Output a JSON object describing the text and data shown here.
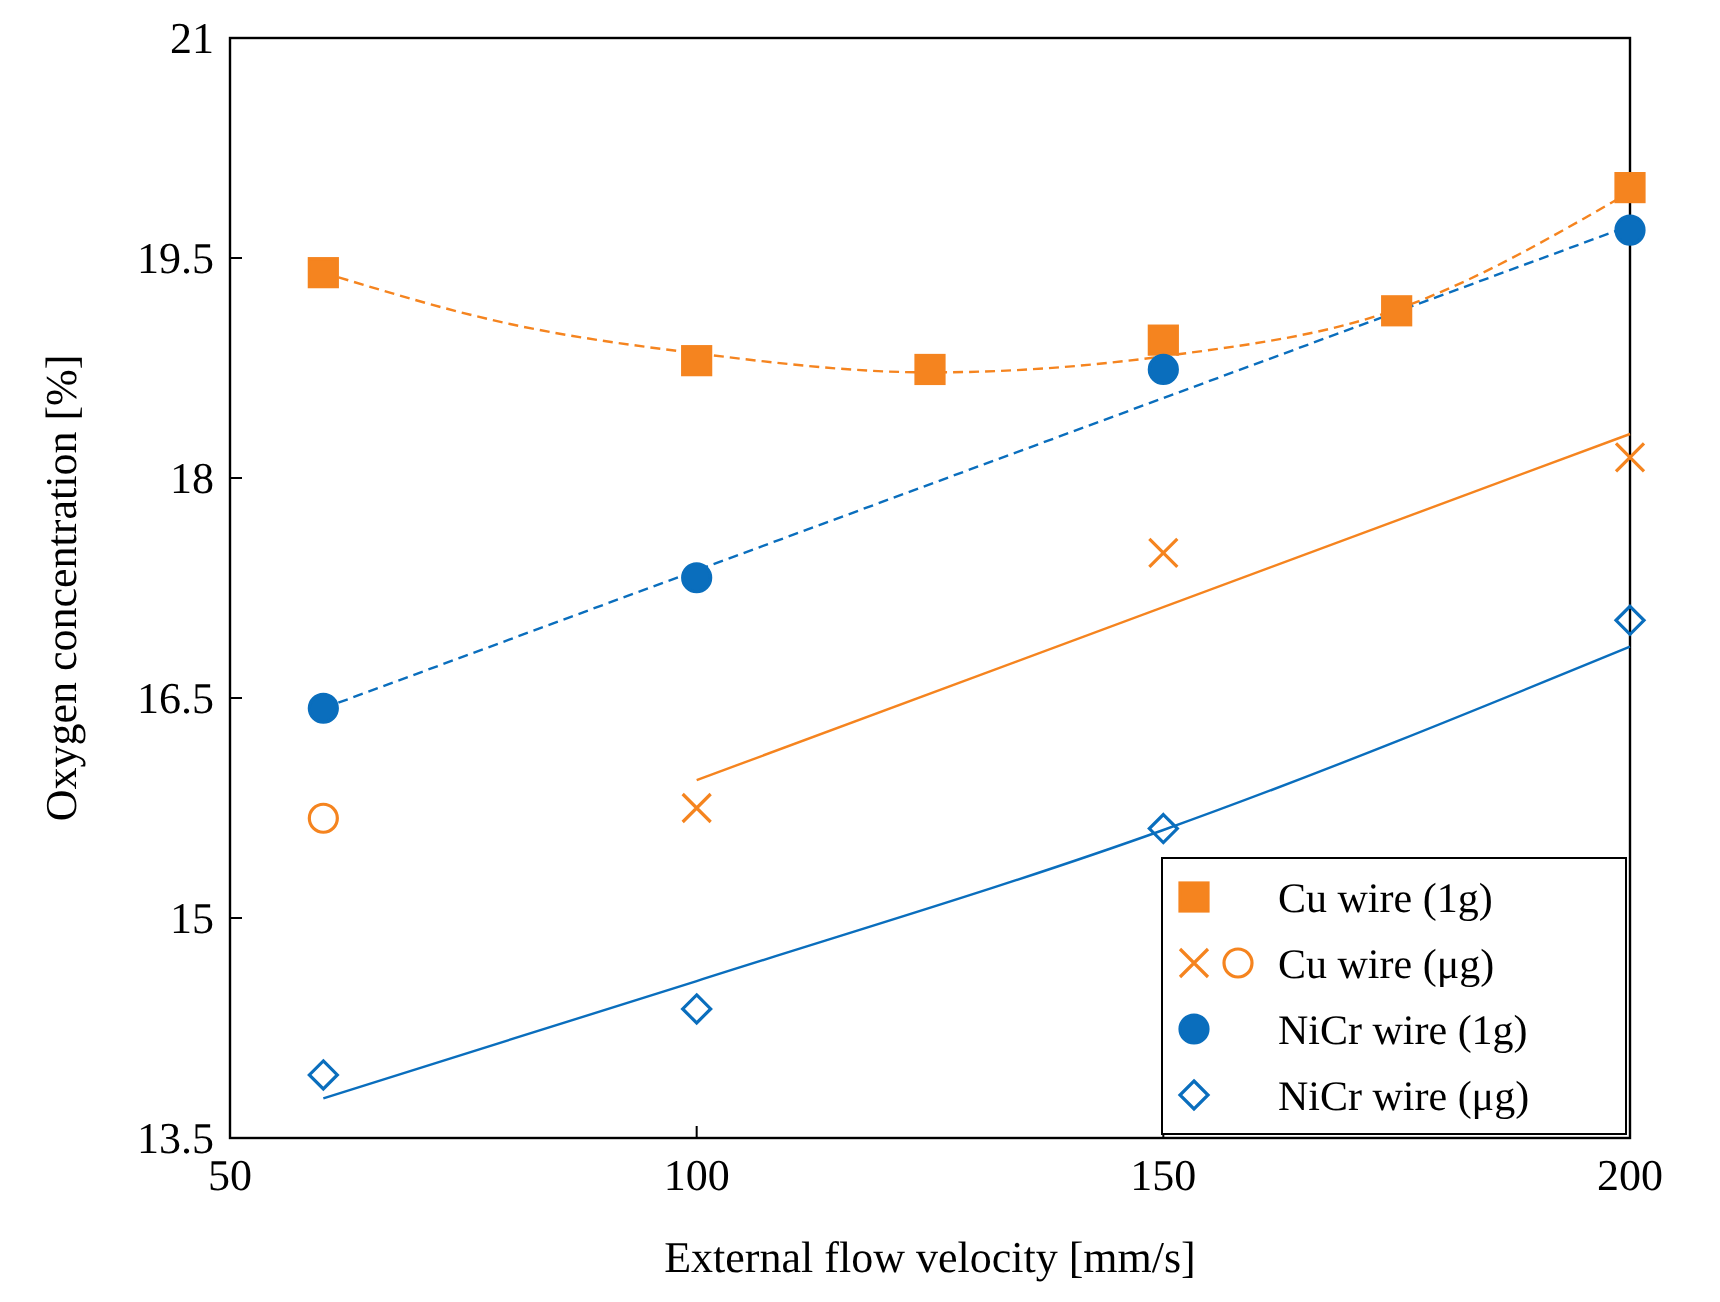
{
  "chart_data": {
    "type": "scatter",
    "xlabel": "External flow velocity [mm/s]",
    "ylabel": "Oxygen concentration [%]",
    "xlim": [
      50,
      200
    ],
    "xticks": [
      50,
      100,
      150,
      200
    ],
    "ylim": [
      13.5,
      21
    ],
    "yticks": [
      13.5,
      15,
      16.5,
      18,
      19.5,
      21
    ],
    "grid": false,
    "legend": "bottom right",
    "series": [
      {
        "type": "line",
        "color": "#f5841f",
        "line_style": "dashed",
        "marker": "none",
        "x": [
          60,
          80,
          100,
          125,
          150,
          175,
          200
        ],
        "values": [
          19.4,
          19.05,
          18.85,
          18.72,
          18.83,
          19.15,
          19.95
        ]
      },
      {
        "type": "line",
        "color": "#0a6ebd",
        "line_style": "dashed",
        "marker": "none",
        "x": [
          60,
          200
        ],
        "values": [
          16.43,
          19.72
        ]
      },
      {
        "type": "line",
        "color": "#f5841f",
        "line_style": "solid",
        "marker": "none",
        "x": [
          100,
          200
        ],
        "values": [
          15.94,
          18.3
        ]
      },
      {
        "type": "line",
        "color": "#0a6ebd",
        "line_style": "solid",
        "marker": "none",
        "x": [
          60,
          100,
          150,
          200
        ],
        "values": [
          13.77,
          14.57,
          15.6,
          16.85
        ]
      },
      {
        "name": "Cu wire (1g)",
        "color": "#f5841f",
        "marker": "square",
        "x": [
          60,
          100,
          125,
          150,
          175,
          200
        ],
        "values": [
          19.4,
          18.8,
          18.74,
          18.94,
          19.14,
          19.98
        ]
      },
      {
        "name": "Cu wire (μg)",
        "color": "#f5841f",
        "marker": "cross",
        "x": [
          100,
          150,
          200
        ],
        "values": [
          15.75,
          17.49,
          18.14
        ]
      },
      {
        "color": "#f5841f",
        "marker": "circle",
        "x": [
          60
        ],
        "values": [
          15.68
        ]
      },
      {
        "name": "NiCr wire (1g)",
        "color": "#0a6ebd",
        "marker": "circle",
        "x": [
          60,
          100,
          150,
          200
        ],
        "values": [
          16.43,
          17.32,
          18.74,
          19.69
        ]
      },
      {
        "name": "NiCr wire (μg)",
        "color": "#0a6ebd",
        "marker": "diamond",
        "x": [
          60,
          100,
          150,
          200
        ],
        "values": [
          13.93,
          14.38,
          15.61,
          17.03
        ]
      }
    ]
  }
}
